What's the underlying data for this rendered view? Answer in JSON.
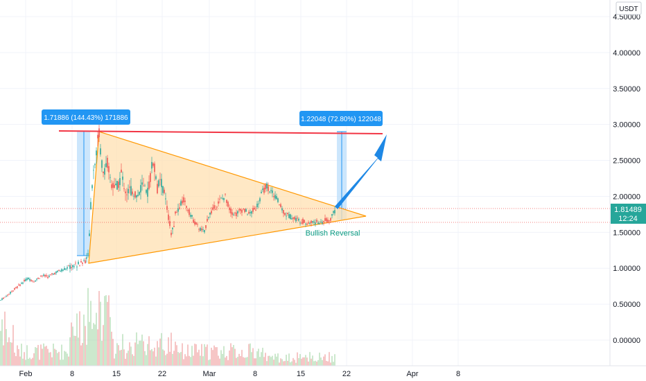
{
  "currency_label": "USDT",
  "price_axis": {
    "labels": [
      "4.50000",
      "4.00000",
      "3.50000",
      "3.00000",
      "2.50000",
      "2.00000",
      "1.50000",
      "1.00000",
      "0.50000",
      "0.00000"
    ],
    "values": [
      4.5,
      4.0,
      3.5,
      3.0,
      2.5,
      2.0,
      1.5,
      1.0,
      0.5,
      0.0
    ]
  },
  "time_axis": {
    "labels": [
      "Feb",
      "8",
      "15",
      "22",
      "Mar",
      "8",
      "15",
      "22",
      "Apr",
      "8"
    ]
  },
  "current_price": {
    "value": "1.81489",
    "countdown": "12:24",
    "color": "#26a69a"
  },
  "measurements": [
    {
      "label": "1.71886 (144.43%) 171886"
    },
    {
      "label": "1.22048 (72.80%) 122048"
    }
  ],
  "annotation": "Bullish Reversal",
  "colors": {
    "up": "#26a69a",
    "down": "#ef5350",
    "triangle_fill": "#ffe0b2",
    "triangle_stroke": "#ff9800",
    "resistance": "#f23645",
    "arrow": "#1e88e5",
    "measure_fill": "#bbdefb",
    "label_bg": "#2196f3"
  },
  "chart_data": {
    "type": "candlestick",
    "ylim": [
      -0.3,
      4.65
    ],
    "yticks": [
      4.5,
      4.0,
      3.5,
      3.0,
      2.5,
      2.0,
      1.5,
      1.0,
      0.5,
      0.0
    ],
    "price_path": [
      [
        0,
        0.55
      ],
      [
        10,
        0.62
      ],
      [
        20,
        0.7
      ],
      [
        30,
        0.78
      ],
      [
        35,
        0.82
      ],
      [
        40,
        0.86
      ],
      [
        50,
        0.82
      ],
      [
        60,
        0.9
      ],
      [
        70,
        0.88
      ],
      [
        80,
        0.94
      ],
      [
        90,
        0.98
      ],
      [
        100,
        1.02
      ],
      [
        110,
        1.05
      ],
      [
        120,
        1.08
      ],
      [
        127,
        1.16
      ],
      [
        133,
        2.2
      ],
      [
        138,
        2.6
      ],
      [
        143,
        2.88
      ],
      [
        148,
        2.35
      ],
      [
        155,
        2.45
      ],
      [
        160,
        2.2
      ],
      [
        168,
        2.1
      ],
      [
        175,
        2.3
      ],
      [
        182,
        2.05
      ],
      [
        190,
        2.1
      ],
      [
        198,
        2.0
      ],
      [
        205,
        2.15
      ],
      [
        212,
        2.0
      ],
      [
        218,
        2.35
      ],
      [
        222,
        2.55
      ],
      [
        226,
        2.1
      ],
      [
        232,
        2.2
      ],
      [
        238,
        2.0
      ],
      [
        242,
        1.75
      ],
      [
        248,
        1.45
      ],
      [
        252,
        1.7
      ],
      [
        258,
        1.85
      ],
      [
        265,
        1.95
      ],
      [
        272,
        1.8
      ],
      [
        280,
        1.65
      ],
      [
        288,
        1.55
      ],
      [
        295,
        1.5
      ],
      [
        300,
        1.72
      ],
      [
        310,
        1.85
      ],
      [
        318,
        1.95
      ],
      [
        325,
        2.0
      ],
      [
        332,
        1.8
      ],
      [
        340,
        1.75
      ],
      [
        350,
        1.82
      ],
      [
        360,
        1.75
      ],
      [
        370,
        1.85
      ],
      [
        378,
        2.05
      ],
      [
        385,
        2.15
      ],
      [
        392,
        2.05
      ],
      [
        398,
        2.0
      ],
      [
        405,
        1.85
      ],
      [
        412,
        1.75
      ],
      [
        420,
        1.72
      ],
      [
        428,
        1.68
      ],
      [
        436,
        1.66
      ],
      [
        444,
        1.62
      ],
      [
        452,
        1.65
      ],
      [
        460,
        1.63
      ],
      [
        468,
        1.66
      ],
      [
        476,
        1.68
      ],
      [
        484,
        1.81
      ]
    ]
  }
}
